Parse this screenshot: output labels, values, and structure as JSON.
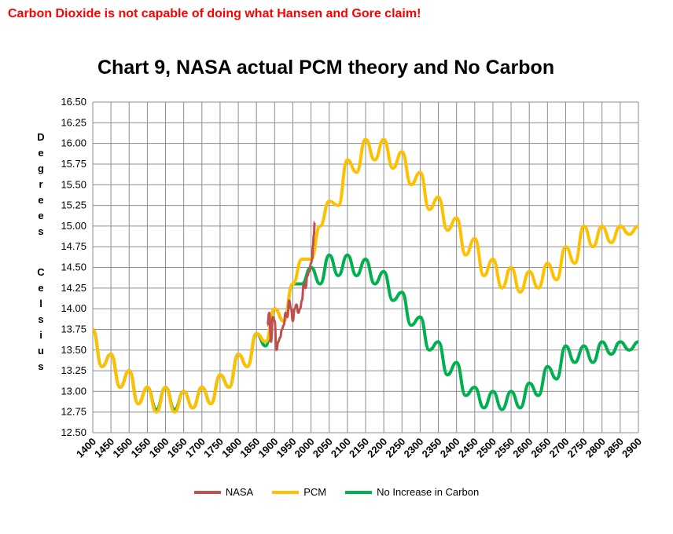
{
  "headline": "Carbon Dioxide is not capable of doing what Hansen and Gore claim!",
  "chart_data": {
    "type": "line",
    "title": "Chart 9, NASA actual PCM theory and No Carbon",
    "ylabel_letters": [
      "D",
      "e",
      "g",
      "r",
      "e",
      "e",
      "s",
      "",
      "C",
      "e",
      "l",
      "s",
      "i",
      "u",
      "s"
    ],
    "xlim": [
      1400,
      2900
    ],
    "ylim": [
      12.5,
      16.5
    ],
    "x_ticks": [
      1400,
      1450,
      1500,
      1550,
      1600,
      1650,
      1700,
      1750,
      1800,
      1850,
      1900,
      1950,
      2000,
      2050,
      2100,
      2150,
      2200,
      2250,
      2300,
      2350,
      2400,
      2450,
      2500,
      2550,
      2600,
      2650,
      2700,
      2750,
      2800,
      2850,
      2900
    ],
    "y_ticks": [
      "12.50",
      "12.75",
      "13.00",
      "13.25",
      "13.50",
      "13.75",
      "14.00",
      "14.25",
      "14.50",
      "14.75",
      "15.00",
      "15.25",
      "15.50",
      "15.75",
      "16.00",
      "16.25",
      "16.50"
    ],
    "grid": true,
    "legend_position": "bottom",
    "series": [
      {
        "name": "NASA",
        "color": "#c0504d",
        "x": [
          1880,
          1885,
          1890,
          1895,
          1900,
          1905,
          1910,
          1915,
          1920,
          1925,
          1930,
          1935,
          1940,
          1945,
          1950,
          1955,
          1960,
          1965,
          1970,
          1975,
          1980,
          1985,
          1990,
          1995,
          2000,
          2003,
          2005,
          2008,
          2010
        ],
        "y": [
          13.8,
          13.95,
          13.6,
          13.9,
          13.85,
          13.5,
          13.6,
          13.65,
          13.75,
          13.8,
          13.95,
          13.9,
          14.1,
          14.0,
          13.85,
          14.0,
          14.05,
          13.95,
          14.0,
          14.1,
          14.3,
          14.25,
          14.4,
          14.45,
          14.55,
          14.6,
          14.75,
          14.9,
          15.05
        ]
      },
      {
        "name": "PCM",
        "color": "#ffc000",
        "x": [
          1400,
          1425,
          1450,
          1475,
          1500,
          1525,
          1550,
          1575,
          1600,
          1625,
          1650,
          1675,
          1700,
          1725,
          1750,
          1775,
          1800,
          1825,
          1850,
          1875,
          1900,
          1925,
          1950,
          1975,
          2000,
          2025,
          2050,
          2075,
          2100,
          2125,
          2150,
          2175,
          2200,
          2225,
          2250,
          2275,
          2300,
          2325,
          2350,
          2375,
          2400,
          2425,
          2450,
          2475,
          2500,
          2525,
          2550,
          2575,
          2600,
          2625,
          2650,
          2675,
          2700,
          2725,
          2750,
          2775,
          2800,
          2825,
          2850,
          2875,
          2900
        ],
        "y": [
          13.75,
          13.3,
          13.45,
          13.05,
          13.25,
          12.85,
          13.05,
          12.75,
          13.05,
          12.75,
          13.0,
          12.8,
          13.05,
          12.85,
          13.2,
          13.05,
          13.45,
          13.3,
          13.7,
          13.6,
          14.0,
          13.85,
          14.3,
          14.6,
          14.6,
          15.0,
          15.3,
          15.25,
          15.8,
          15.65,
          16.05,
          15.8,
          16.05,
          15.7,
          15.9,
          15.5,
          15.65,
          15.2,
          15.35,
          14.95,
          15.1,
          14.65,
          14.85,
          14.4,
          14.6,
          14.25,
          14.5,
          14.2,
          14.45,
          14.25,
          14.55,
          14.35,
          14.75,
          14.55,
          15.0,
          14.75,
          15.0,
          14.8,
          15.0,
          14.9,
          15.0
        ]
      },
      {
        "name": "No Increase in Carbon",
        "color": "#00b050",
        "x": [
          1400,
          1425,
          1450,
          1475,
          1500,
          1525,
          1550,
          1575,
          1600,
          1625,
          1650,
          1675,
          1700,
          1725,
          1750,
          1775,
          1800,
          1825,
          1850,
          1875,
          1900,
          1925,
          1950,
          1975,
          2000,
          2025,
          2050,
          2075,
          2100,
          2125,
          2150,
          2175,
          2200,
          2225,
          2250,
          2275,
          2300,
          2325,
          2350,
          2375,
          2400,
          2425,
          2450,
          2475,
          2500,
          2525,
          2550,
          2575,
          2600,
          2625,
          2650,
          2675,
          2700,
          2725,
          2750,
          2775,
          2800,
          2825,
          2850,
          2875,
          2900
        ],
        "y": [
          13.75,
          13.3,
          13.45,
          13.05,
          13.25,
          12.85,
          13.05,
          12.78,
          13.05,
          12.78,
          13.0,
          12.8,
          13.05,
          12.85,
          13.2,
          13.05,
          13.45,
          13.3,
          13.7,
          13.55,
          14.0,
          13.85,
          14.3,
          14.3,
          14.5,
          14.3,
          14.65,
          14.4,
          14.65,
          14.4,
          14.6,
          14.3,
          14.45,
          14.1,
          14.2,
          13.8,
          13.9,
          13.5,
          13.6,
          13.2,
          13.35,
          12.95,
          13.05,
          12.8,
          13.0,
          12.78,
          13.0,
          12.8,
          13.1,
          12.95,
          13.3,
          13.15,
          13.55,
          13.35,
          13.55,
          13.35,
          13.6,
          13.45,
          13.6,
          13.5,
          13.6
        ]
      }
    ]
  }
}
